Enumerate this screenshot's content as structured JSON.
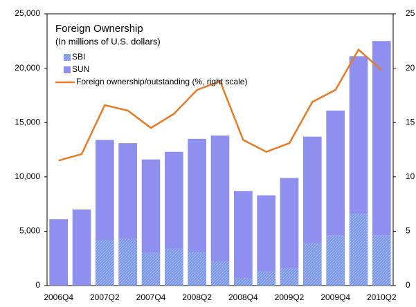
{
  "chart_data": {
    "type": "bar",
    "title": "Foreign Ownership",
    "subtitle": "(In millions of U.S. dollars)",
    "categories": [
      "2006Q4",
      null,
      "2007Q2",
      null,
      "2007Q4",
      null,
      "2008Q2",
      null,
      "2008Q4",
      null,
      "2009Q2",
      null,
      "2009Q4",
      null,
      "2010Q2"
    ],
    "series": [
      {
        "name": "SBI",
        "color": "#7a95e6",
        "hatch": true,
        "values": [
          0,
          0,
          4200,
          4300,
          3000,
          3400,
          3100,
          2200,
          700,
          1300,
          1600,
          3900,
          4600,
          6600,
          4600
        ]
      },
      {
        "name": "SUN",
        "color": "#8f8ff0",
        "values": [
          6100,
          7000,
          9200,
          8800,
          8600,
          8900,
          10400,
          11600,
          8000,
          7000,
          8300,
          9800,
          11500,
          14500,
          17900
        ]
      },
      {
        "name": "Foreign ownership/outstanding (%, right scale)",
        "type": "line",
        "axis": "y2",
        "color": "#ea7a22",
        "values": [
          11.5,
          12.1,
          16.6,
          16.1,
          14.5,
          15.8,
          18,
          18.8,
          13.4,
          12.3,
          13.1,
          16.9,
          18,
          21.7,
          19.8
        ]
      }
    ],
    "stacked": true,
    "ylim": [
      0,
      25000
    ],
    "yticks": [
      0,
      {
        "value": 5000,
        "label": "5,000"
      },
      {
        "value": 10000,
        "label": "10,000"
      },
      {
        "value": 15000,
        "label": "15,000"
      },
      {
        "value": 20000,
        "label": "20,000"
      },
      {
        "value": 25000,
        "label": "25,000"
      }
    ],
    "y2lim": [
      0,
      25
    ],
    "y2ticks": [
      0,
      5,
      10,
      15,
      20,
      25
    ],
    "grid": false
  }
}
